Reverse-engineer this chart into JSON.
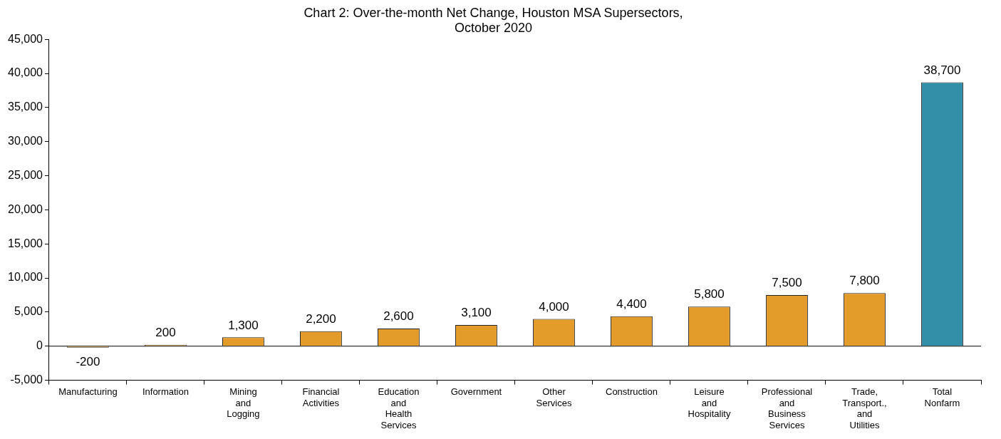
{
  "chart_data": {
    "type": "bar",
    "title": "Chart 2: Over-the-month Net Change, Houston MSA Supersectors, October 2020",
    "categories": [
      "Manufacturing",
      "Information",
      "Mining and Logging",
      "Financial Activities",
      "Education and Health Services",
      "Government",
      "Other Services",
      "Construction",
      "Leisure and Hospitality",
      "Professional and Business Services",
      "Trade, Transport., and Utilities",
      "Total Nonfarm"
    ],
    "values": [
      -200,
      200,
      1300,
      2200,
      2600,
      3100,
      4000,
      4400,
      5800,
      7500,
      7800,
      38700
    ],
    "value_labels": [
      "-200",
      "200",
      "1,300",
      "2,200",
      "2,600",
      "3,100",
      "4,000",
      "4,400",
      "5,800",
      "7,500",
      "7,800",
      "38,700"
    ],
    "colors": [
      "#e39b2a",
      "#e39b2a",
      "#e39b2a",
      "#e39b2a",
      "#e39b2a",
      "#e39b2a",
      "#e39b2a",
      "#e39b2a",
      "#e39b2a",
      "#e39b2a",
      "#e39b2a",
      "#338fa8"
    ],
    "ylim": [
      -5000,
      45000
    ],
    "yticks": [
      {
        "value": -5000,
        "label": "-5,000"
      },
      0,
      {
        "value": 5000,
        "label": "5,000"
      },
      {
        "value": 10000,
        "label": "10,000"
      },
      {
        "value": 15000,
        "label": "15,000"
      },
      {
        "value": 20000,
        "label": "20,000"
      },
      {
        "value": 25000,
        "label": "25,000"
      },
      {
        "value": 30000,
        "label": "30,000"
      },
      {
        "value": 35000,
        "label": "35,000"
      },
      {
        "value": 40000,
        "label": "40,000"
      },
      {
        "value": 45000,
        "label": "45,000"
      }
    ]
  }
}
